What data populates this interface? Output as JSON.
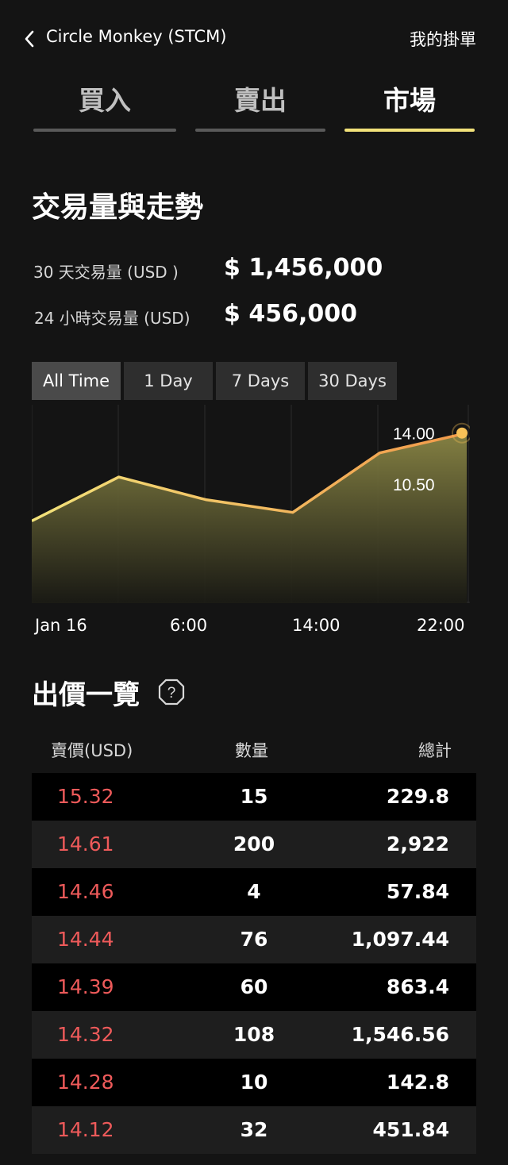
{
  "header": {
    "title": "Circle Monkey (STCM)",
    "my_orders": "我的掛單"
  },
  "tabs": [
    {
      "label": "買入",
      "active": false
    },
    {
      "label": "賣出",
      "active": false
    },
    {
      "label": "市場",
      "active": true
    }
  ],
  "volume": {
    "title": "交易量與走勢",
    "stat_30d_label": "30 天交易量 (USD )",
    "stat_30d_value": "$ 1,456,000",
    "stat_24h_label": "24 小時交易量 (USD)",
    "stat_24h_value": "$ 456,000"
  },
  "ranges": [
    {
      "label": "All Time",
      "active": true
    },
    {
      "label": "1 Day",
      "active": false
    },
    {
      "label": "7 Days",
      "active": false
    },
    {
      "label": "30 Days",
      "active": false
    }
  ],
  "chart_data": {
    "type": "area",
    "x_tick_labels": [
      "Jan 16",
      "6:00",
      "14:00",
      "22:00"
    ],
    "y_tick_labels": [
      "14.00",
      "10.50"
    ],
    "x": [
      0,
      1,
      2,
      3,
      4,
      5
    ],
    "values": [
      7.8,
      10.9,
      9.3,
      8.4,
      12.6,
      14.0
    ],
    "ylim": [
      2.0,
      16.0
    ],
    "grid": true,
    "colors": {
      "line_start": "#f2e27a",
      "line_end": "#f2994a",
      "marker": "#f7c157"
    }
  },
  "quotes": {
    "title": "出價一覽",
    "help_icon": "question-icon",
    "headers": {
      "price": "賣價(USD)",
      "qty": "數量",
      "total": "總計"
    },
    "rows": [
      {
        "price": "15.32",
        "qty": "15",
        "total": "229.8"
      },
      {
        "price": "14.61",
        "qty": "200",
        "total": "2,922"
      },
      {
        "price": "14.46",
        "qty": "4",
        "total": "57.84"
      },
      {
        "price": "14.44",
        "qty": "76",
        "total": "1,097.44"
      },
      {
        "price": "14.39",
        "qty": "60",
        "total": "863.4"
      },
      {
        "price": "14.32",
        "qty": "108",
        "total": "1,546.56"
      },
      {
        "price": "14.28",
        "qty": "10",
        "total": "142.8"
      },
      {
        "price": "14.12",
        "qty": "32",
        "total": "451.84"
      }
    ]
  },
  "colors": {
    "background": "#141414",
    "accent": "#f2e27a",
    "sell_price": "#ee5a5a"
  }
}
